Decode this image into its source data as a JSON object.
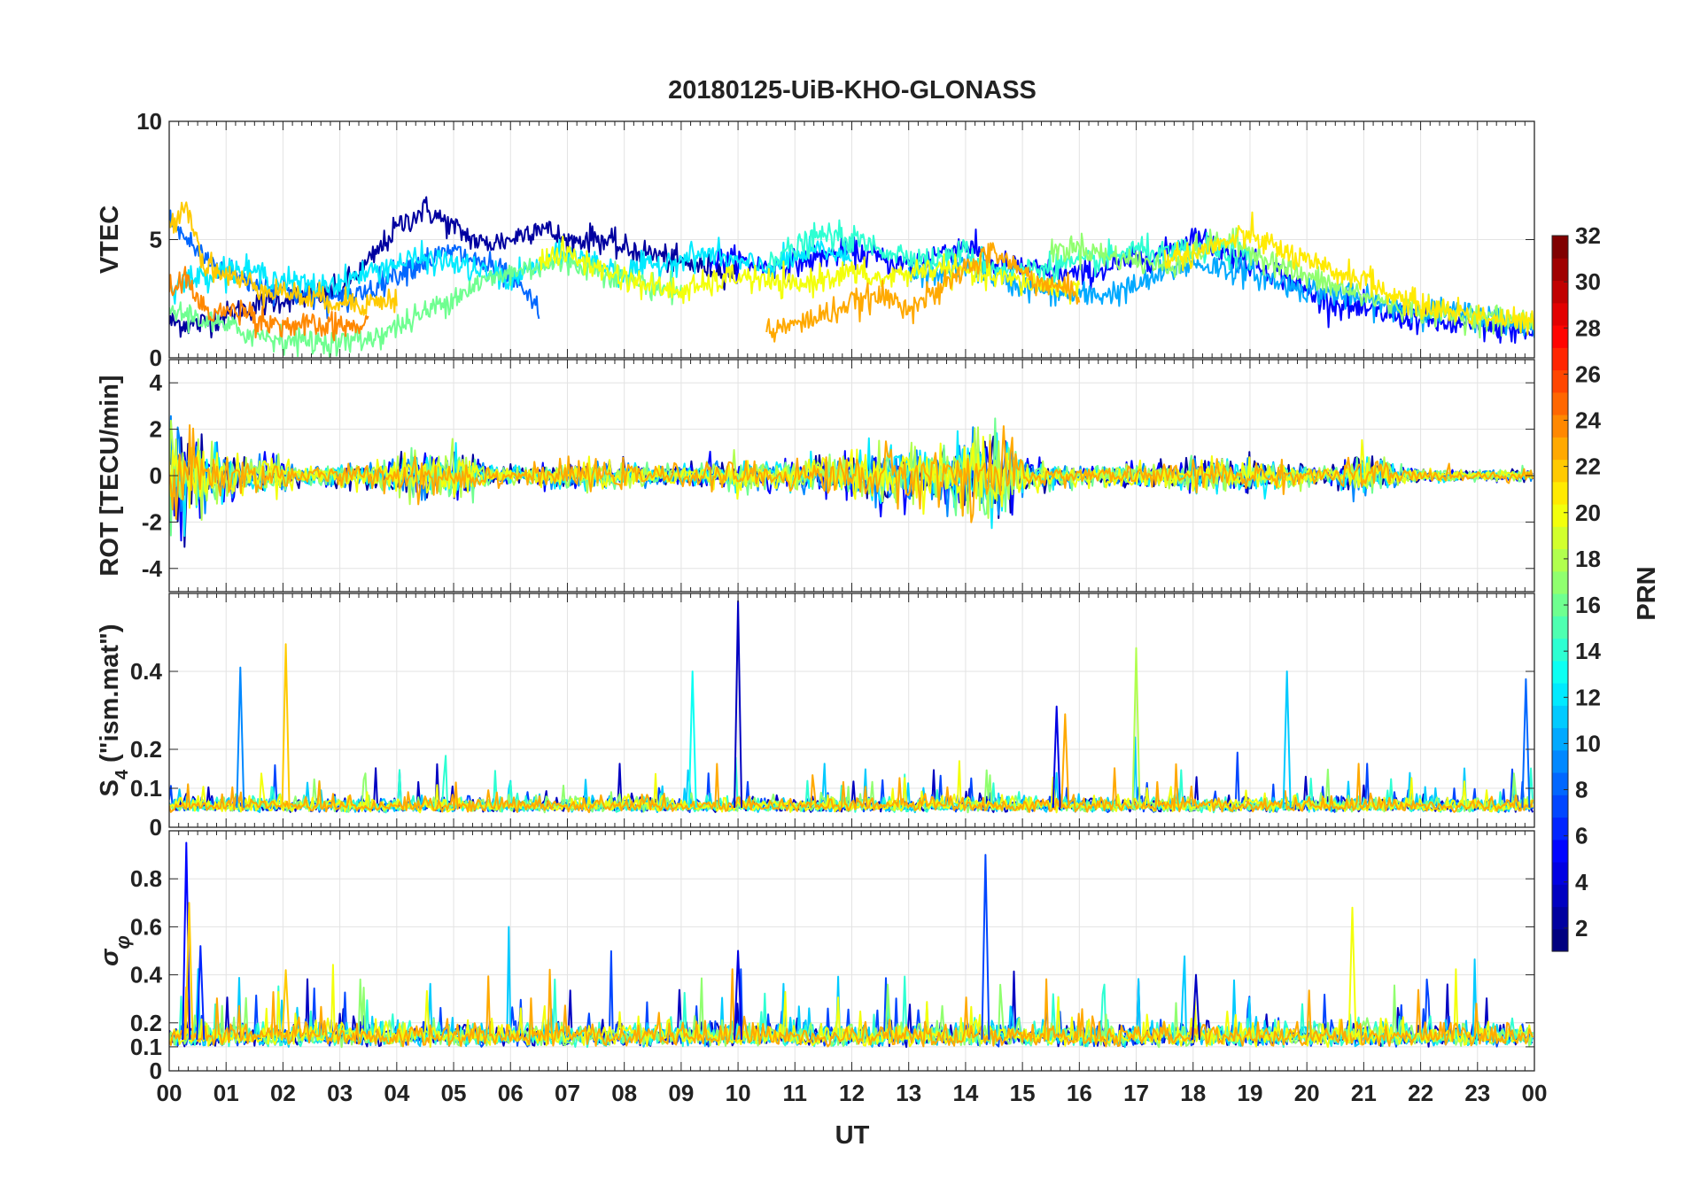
{
  "chart_data": {
    "type": "line",
    "title": "20180125-UiB-KHO-GLONASS",
    "xlabel": "UT",
    "x_range_hours": [
      0,
      24
    ],
    "x_tick_labels": [
      "00",
      "01",
      "02",
      "03",
      "04",
      "05",
      "06",
      "07",
      "08",
      "09",
      "10",
      "11",
      "12",
      "13",
      "14",
      "15",
      "16",
      "17",
      "18",
      "19",
      "20",
      "21",
      "22",
      "23",
      "00"
    ],
    "grid": true,
    "colorbar": {
      "label": "PRN",
      "range": [
        1,
        32
      ],
      "tick_labels": [
        "2",
        "4",
        "6",
        "8",
        "10",
        "12",
        "14",
        "16",
        "18",
        "20",
        "22",
        "24",
        "26",
        "28",
        "30",
        "32"
      ],
      "colormap": "jet"
    },
    "panels": [
      {
        "id": "vtec",
        "ylabel": "VTEC",
        "ylim": [
          0,
          10
        ],
        "y_ticks": [
          0,
          5,
          10
        ],
        "y_tick_labels": [
          "0",
          "5",
          "10"
        ],
        "approx_series": [
          {
            "prn": 2,
            "x": [
              0.0,
              0.5,
              1.0,
              1.5,
              2.0,
              2.5,
              3.0,
              3.5,
              4.0,
              4.5,
              5.0,
              5.5,
              6.0,
              6.5,
              7.0,
              7.5,
              8.0,
              8.5,
              9.0,
              9.5,
              10.0
            ],
            "y": [
              1.5,
              1.4,
              1.8,
              2.2,
              2.5,
              2.6,
              2.9,
              4.0,
              5.5,
              6.3,
              5.5,
              4.8,
              5.0,
              5.6,
              4.9,
              5.1,
              4.6,
              4.4,
              4.0,
              3.8,
              3.6
            ]
          },
          {
            "prn": 5,
            "x": [
              9.5,
              10.0,
              10.5,
              11.0,
              11.5,
              12.0,
              12.5,
              13.0,
              13.5,
              14.0,
              14.5,
              15.0,
              15.5,
              16.0,
              16.5,
              17.0,
              17.5,
              18.0,
              18.5,
              19.0,
              19.5,
              20.0,
              20.5,
              21.0,
              21.5,
              22.0,
              22.5,
              23.0,
              23.5,
              24.0
            ],
            "y": [
              4.2,
              4.1,
              3.8,
              4.0,
              4.3,
              4.5,
              4.2,
              3.9,
              4.4,
              4.8,
              4.0,
              3.8,
              3.6,
              3.5,
              3.8,
              4.2,
              4.4,
              5.2,
              4.5,
              4.0,
              3.6,
              2.8,
              2.3,
              2.0,
              1.8,
              1.6,
              1.4,
              1.3,
              1.2,
              1.0
            ]
          },
          {
            "prn": 8,
            "x": [
              0.0,
              0.5,
              1.0,
              1.5,
              2.0,
              2.5,
              3.0,
              3.5,
              4.0,
              4.5,
              5.0,
              5.5,
              6.0,
              6.5
            ],
            "y": [
              5.8,
              4.5,
              3.6,
              3.2,
              2.9,
              2.6,
              2.4,
              2.9,
              3.6,
              4.1,
              4.5,
              4.0,
              3.4,
              2.0
            ]
          },
          {
            "prn": 10,
            "x": [
              13.0,
              13.5,
              14.0,
              14.5,
              15.0,
              15.5,
              16.0,
              16.5,
              17.0,
              17.5,
              18.0,
              18.5,
              19.0,
              19.5,
              20.0,
              20.5,
              21.0,
              21.5,
              22.0,
              22.5,
              23.0,
              23.5,
              24.0
            ],
            "y": [
              3.4,
              3.6,
              3.9,
              3.5,
              3.0,
              2.8,
              2.6,
              2.7,
              3.0,
              3.6,
              4.0,
              3.8,
              3.6,
              3.2,
              2.9,
              2.7,
              2.4,
              2.2,
              2.0,
              1.9,
              1.8,
              1.6,
              1.3
            ]
          },
          {
            "prn": 12,
            "x": [
              0.0,
              0.5,
              1.0,
              1.5,
              2.0,
              2.5,
              3.0,
              3.5,
              4.0,
              4.5,
              5.0,
              5.5,
              6.0,
              6.5,
              7.0,
              7.5,
              8.0,
              8.5,
              9.0,
              9.5,
              10.0,
              10.5,
              11.0,
              11.5,
              12.0
            ],
            "y": [
              3.0,
              3.4,
              3.8,
              3.6,
              3.3,
              3.0,
              3.2,
              3.6,
              4.0,
              4.2,
              4.0,
              3.6,
              3.3,
              3.9,
              4.4,
              4.0,
              3.6,
              3.9,
              4.2,
              4.4,
              4.0,
              3.8,
              4.2,
              4.6,
              4.1
            ]
          },
          {
            "prn": 14,
            "x": [
              10.5,
              11.0,
              11.5,
              12.0,
              12.5,
              13.0,
              13.5,
              14.0,
              14.5,
              15.0,
              15.5,
              16.0,
              16.5,
              17.0,
              17.5,
              18.0,
              18.5,
              19.0
            ],
            "y": [
              4.2,
              4.6,
              5.2,
              5.0,
              4.6,
              4.3,
              4.1,
              4.5,
              3.8,
              3.7,
              3.9,
              4.0,
              4.2,
              4.6,
              4.3,
              4.6,
              4.5,
              4.2
            ]
          },
          {
            "prn": 16,
            "x": [
              0.0,
              0.5,
              1.0,
              1.5,
              2.0,
              2.5,
              3.0,
              3.5,
              4.0,
              4.5,
              5.0,
              5.5,
              6.0,
              6.5,
              7.0,
              7.5,
              8.0,
              8.5,
              9.0
            ],
            "y": [
              2.0,
              1.7,
              1.3,
              1.0,
              0.8,
              0.7,
              0.65,
              0.8,
              1.3,
              1.9,
              2.6,
              3.2,
              3.6,
              3.9,
              4.0,
              3.8,
              3.4,
              3.0,
              2.8
            ]
          },
          {
            "prn": 17,
            "x": [
              15.5,
              16.0,
              16.5,
              17.0,
              17.5,
              18.0,
              18.5,
              19.0,
              19.5,
              20.0,
              20.5,
              21.0,
              21.5,
              22.0,
              22.5,
              23.0,
              23.5,
              24.0
            ],
            "y": [
              4.5,
              4.7,
              4.3,
              4.1,
              3.8,
              4.4,
              5.0,
              4.6,
              3.9,
              3.4,
              3.0,
              2.6,
              2.3,
              2.0,
              1.8,
              1.7,
              1.6,
              1.5
            ]
          },
          {
            "prn": 20,
            "x": [
              6.5,
              7.0,
              7.5,
              8.0,
              8.5,
              9.0,
              9.5,
              10.0,
              10.5,
              11.0,
              11.5,
              12.0,
              12.5,
              13.0,
              13.5,
              14.0,
              14.5,
              15.0,
              15.5,
              16.0
            ],
            "y": [
              4.2,
              4.4,
              3.8,
              3.4,
              3.0,
              2.8,
              3.1,
              3.5,
              3.2,
              3.0,
              3.4,
              3.6,
              3.3,
              3.6,
              3.8,
              3.6,
              3.4,
              3.2,
              3.0,
              2.9
            ]
          },
          {
            "prn": 21,
            "x": [
              17.5,
              18.0,
              18.5,
              19.0,
              19.5,
              20.0,
              20.5,
              21.0,
              21.5,
              22.0,
              22.5,
              23.0,
              23.5,
              24.0
            ],
            "y": [
              4.2,
              4.4,
              4.8,
              5.2,
              4.6,
              4.0,
              3.6,
              3.4,
              2.6,
              2.2,
              2.0,
              1.8,
              1.6,
              1.4
            ]
          },
          {
            "prn": 22,
            "x": [
              0.0,
              0.3,
              0.6,
              1.0,
              1.3,
              1.6,
              2.0,
              2.5,
              3.0,
              3.5,
              4.0
            ],
            "y": [
              5.5,
              6.6,
              4.0,
              3.5,
              3.2,
              3.0,
              2.8,
              2.5,
              2.4,
              2.3,
              2.5
            ]
          },
          {
            "prn": 23,
            "x": [
              10.5,
              11.0,
              11.5,
              12.0,
              12.5,
              13.0,
              13.5,
              14.0,
              14.5,
              15.0,
              15.5,
              16.0
            ],
            "y": [
              1.1,
              1.4,
              1.8,
              2.3,
              2.6,
              2.2,
              2.7,
              3.8,
              4.5,
              3.6,
              3.0,
              2.8
            ]
          },
          {
            "prn": 24,
            "x": [
              0.0,
              0.3,
              0.6,
              1.0,
              1.3,
              1.6,
              2.0,
              2.5,
              3.0,
              3.5
            ],
            "y": [
              2.8,
              3.4,
              2.0,
              1.9,
              2.1,
              1.6,
              1.4,
              1.3,
              1.3,
              1.4
            ]
          }
        ]
      },
      {
        "id": "rot",
        "ylabel": "ROT [TECU/min]",
        "ylim": [
          -5,
          5
        ],
        "y_ticks": [
          -4,
          -2,
          0,
          2,
          4
        ],
        "y_tick_labels": [
          "-4",
          "-2",
          "0",
          "2",
          "4"
        ],
        "baseline": 0,
        "approx_amplitude_envelope": {
          "x": [
            0.0,
            0.5,
            1.0,
            1.5,
            2.0,
            2.5,
            3.0,
            3.5,
            4.0,
            4.5,
            5.0,
            5.5,
            6.0,
            6.5,
            7.0,
            7.5,
            8.0,
            8.5,
            9.0,
            9.5,
            10.0,
            10.5,
            11.0,
            11.5,
            12.0,
            12.5,
            13.0,
            13.5,
            14.0,
            14.5,
            15.0,
            15.5,
            16.0,
            16.5,
            17.0,
            17.5,
            18.0,
            18.5,
            19.0,
            19.5,
            20.0,
            20.5,
            21.0,
            21.5,
            22.0,
            22.5,
            23.0,
            23.5,
            24.0
          ],
          "y": [
            3.5,
            2.0,
            1.2,
            1.0,
            0.8,
            0.4,
            0.6,
            0.6,
            0.9,
            1.2,
            1.2,
            0.7,
            0.5,
            0.5,
            0.8,
            0.8,
            0.6,
            0.5,
            0.6,
            0.6,
            0.8,
            0.7,
            0.8,
            1.0,
            1.2,
            1.6,
            1.5,
            1.4,
            2.0,
            2.4,
            1.0,
            0.6,
            0.5,
            0.5,
            0.6,
            0.6,
            0.8,
            0.8,
            0.8,
            0.7,
            0.5,
            0.5,
            1.2,
            0.6,
            0.3,
            0.3,
            0.3,
            0.3,
            0.3
          ]
        }
      },
      {
        "id": "s4",
        "ylabel": "S4 (\"ism.mat\")",
        "ylim": [
          0,
          0.6
        ],
        "y_ticks": [
          0,
          0.1,
          0.2,
          0.4
        ],
        "y_tick_labels": [
          "0",
          "0.1",
          "0.2",
          "0.4"
        ],
        "baseline_level": 0.05,
        "spikes": [
          {
            "x": 1.25,
            "y": 0.41,
            "prn": 9
          },
          {
            "x": 2.05,
            "y": 0.47,
            "prn": 22
          },
          {
            "x": 9.2,
            "y": 0.4,
            "prn": 13
          },
          {
            "x": 10.0,
            "y": 0.58,
            "prn": 3
          },
          {
            "x": 15.6,
            "y": 0.31,
            "prn": 4
          },
          {
            "x": 15.75,
            "y": 0.29,
            "prn": 23
          },
          {
            "x": 17.0,
            "y": 0.46,
            "prn": 18
          },
          {
            "x": 19.65,
            "y": 0.4,
            "prn": 11
          },
          {
            "x": 23.85,
            "y": 0.38,
            "prn": 8
          }
        ]
      },
      {
        "id": "sigma_phi",
        "ylabel": "σφ",
        "ylim": [
          0,
          1.0
        ],
        "y_ticks": [
          0,
          0.1,
          0.2,
          0.4,
          0.6,
          0.8
        ],
        "y_tick_labels": [
          "0",
          "0.1",
          "0.2",
          "0.4",
          "0.6",
          "0.8"
        ],
        "baseline_level": 0.13,
        "spikes": [
          {
            "x": 0.3,
            "y": 0.95,
            "prn": 5
          },
          {
            "x": 0.35,
            "y": 0.7,
            "prn": 22
          },
          {
            "x": 0.55,
            "y": 0.52,
            "prn": 6
          },
          {
            "x": 2.05,
            "y": 0.42,
            "prn": 22
          },
          {
            "x": 10.0,
            "y": 0.5,
            "prn": 4
          },
          {
            "x": 14.35,
            "y": 0.9,
            "prn": 7
          },
          {
            "x": 18.05,
            "y": 0.4,
            "prn": 3
          },
          {
            "x": 20.8,
            "y": 0.68,
            "prn": 20
          }
        ]
      }
    ]
  }
}
